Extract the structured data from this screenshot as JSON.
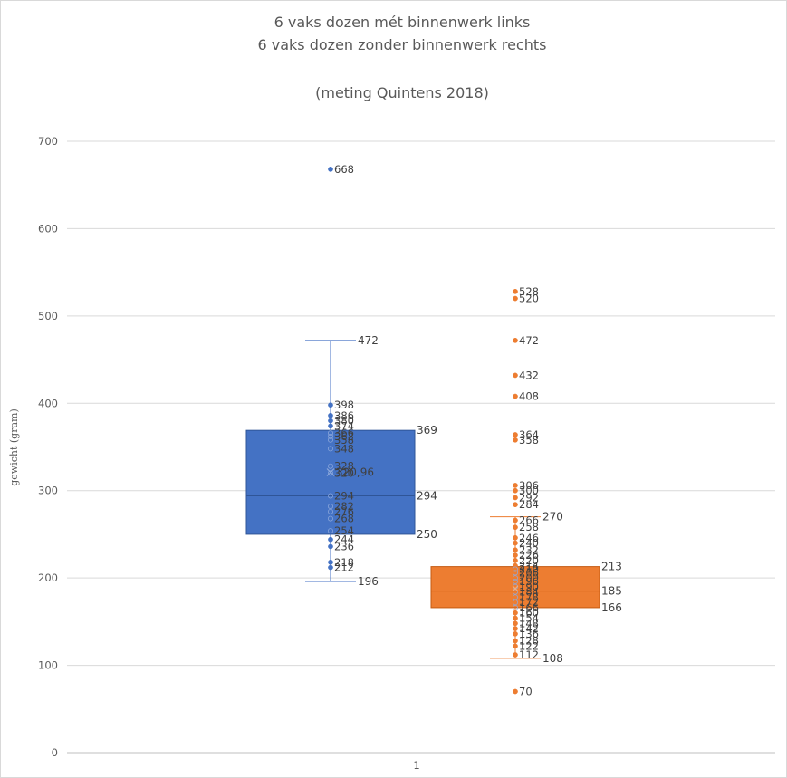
{
  "chart_data": {
    "type": "boxplot",
    "title": "6 vaks dozen mét binnenwerk links",
    "subtitle": "6 vaks dozen zonder binnenwerk rechts",
    "note": "(meting Quintens 2018)",
    "ylabel": "gewicht (gram)",
    "categories": [
      "1"
    ],
    "ylim": [
      0,
      700
    ],
    "yticks": [
      0,
      100,
      200,
      300,
      400,
      500,
      600,
      700
    ],
    "grid": true,
    "series": [
      {
        "color": "#4472C4",
        "points": [
          668,
          398,
          386,
          380,
          374,
          366,
          362,
          358,
          348,
          328,
          320,
          294,
          282,
          276,
          268,
          254,
          244,
          236,
          218,
          212
        ],
        "point_labels": [
          "668",
          "398",
          "386",
          "380",
          "374",
          "366",
          "362",
          "358",
          "348",
          "328",
          "320",
          "294",
          "282",
          "276",
          "268",
          "254",
          "244",
          "236",
          "218",
          "212"
        ],
        "whisker_low": 196,
        "q1": 250,
        "median": 294,
        "q3": 369,
        "whisker_high": 472,
        "mean": 320.96,
        "stat_labels": {
          "whisker_high": "472",
          "q3": "369",
          "median": "294",
          "q1": "250",
          "whisker_low": "196",
          "mean": "320,96"
        }
      },
      {
        "color": "#ED7D31",
        "points": [
          528,
          520,
          472,
          432,
          408,
          364,
          358,
          306,
          300,
          292,
          284,
          266,
          258,
          246,
          240,
          232,
          226,
          220,
          214,
          210,
          206,
          200,
          196,
          190,
          184,
          178,
          172,
          166,
          160,
          154,
          148,
          142,
          136,
          128,
          122,
          112,
          70
        ],
        "point_labels": [
          "528",
          "520",
          "472",
          "432",
          "408",
          "364",
          "358",
          "306",
          "300",
          "292",
          "284",
          "266",
          "258",
          "246",
          "240",
          "232",
          "226",
          "220",
          "214",
          "210",
          "206",
          "200",
          "196",
          "190",
          "184",
          "178",
          "172",
          "166",
          "160",
          "154",
          "148",
          "142",
          "136",
          "128",
          "122",
          "112",
          "70"
        ],
        "whisker_low": 108,
        "q1": 166,
        "median": 185,
        "q3": 213,
        "whisker_high": 270,
        "mean": 188,
        "stat_labels": {
          "whisker_high": "270",
          "q3": "213",
          "median": "185",
          "q1": "166",
          "whisker_low": "108"
        }
      }
    ]
  }
}
